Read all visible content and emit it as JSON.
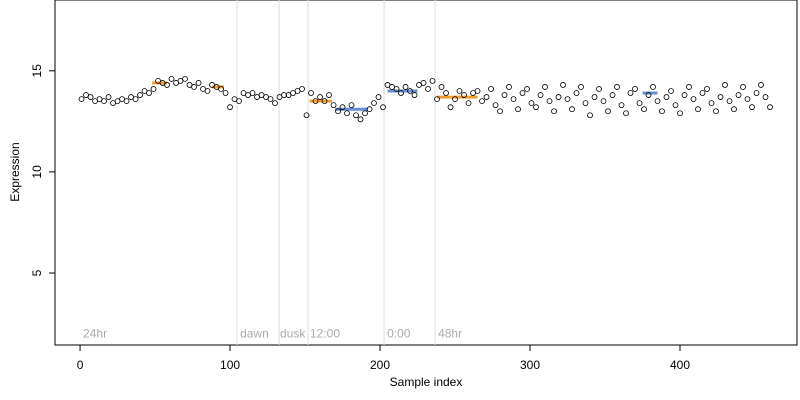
{
  "chart_data": {
    "type": "scatter",
    "x_label": "Sample index",
    "y_label": "Expression",
    "xlim": [
      -16.7,
      478
    ],
    "ylim": [
      1.44,
      18.5
    ],
    "xticks": [
      0,
      100,
      200,
      300,
      400
    ],
    "yticks": [
      5,
      10,
      15
    ],
    "x": [
      1,
      4,
      7,
      10,
      13,
      16,
      19,
      22,
      25,
      28,
      31,
      34,
      37,
      40,
      43,
      46,
      49,
      52,
      55,
      58,
      61,
      64,
      67,
      70,
      73,
      76,
      79,
      82,
      85,
      88,
      91,
      94,
      97,
      100,
      103,
      106,
      109,
      112,
      115,
      118,
      121,
      124,
      127,
      130,
      133,
      136,
      139,
      142,
      145,
      148,
      151,
      154,
      157,
      160,
      163,
      166,
      169,
      172,
      175,
      178,
      181,
      184,
      187,
      190,
      193,
      196,
      199,
      202,
      205,
      208,
      211,
      214,
      217,
      220,
      223,
      226,
      229,
      232,
      235,
      238,
      241,
      244,
      247,
      250,
      253,
      256,
      259,
      262,
      265,
      268,
      271,
      274,
      277,
      280,
      283,
      286,
      289,
      292,
      295,
      298,
      301,
      304,
      307,
      310,
      313,
      316,
      319,
      322,
      325,
      328,
      331,
      334,
      337,
      340,
      343,
      346,
      349,
      352,
      355,
      358,
      361,
      364,
      367,
      370,
      373,
      376,
      379,
      382,
      385,
      388,
      391,
      394,
      397,
      400,
      403,
      406,
      409,
      412,
      415,
      418,
      421,
      424,
      427,
      430,
      433,
      436,
      439,
      442,
      445,
      448,
      451,
      454,
      457,
      460
    ],
    "values": [
      13.6,
      13.8,
      13.7,
      13.5,
      13.6,
      13.5,
      13.7,
      13.4,
      13.5,
      13.6,
      13.5,
      13.7,
      13.6,
      13.8,
      14.0,
      13.9,
      14.1,
      14.5,
      14.4,
      14.3,
      14.6,
      14.4,
      14.5,
      14.6,
      14.3,
      14.2,
      14.4,
      14.1,
      14.0,
      14.3,
      14.2,
      14.1,
      13.9,
      13.2,
      13.6,
      13.5,
      13.9,
      13.8,
      13.9,
      13.7,
      13.8,
      13.7,
      13.6,
      13.4,
      13.7,
      13.8,
      13.8,
      13.9,
      14.0,
      14.1,
      12.8,
      13.9,
      13.5,
      13.7,
      13.5,
      13.8,
      13.3,
      13.0,
      13.2,
      12.9,
      13.3,
      12.8,
      12.6,
      12.9,
      13.1,
      13.4,
      13.7,
      13.2,
      14.3,
      14.2,
      14.1,
      13.9,
      14.2,
      14.0,
      13.8,
      14.3,
      14.4,
      14.1,
      14.5,
      13.6,
      14.2,
      13.9,
      13.2,
      13.6,
      14.0,
      13.8,
      13.4,
      13.9,
      14.0,
      13.5,
      13.7,
      14.1,
      13.3,
      13.0,
      13.8,
      14.2,
      13.6,
      13.1,
      13.9,
      14.1,
      13.4,
      13.2,
      13.8,
      14.2,
      13.5,
      13.0,
      13.7,
      14.3,
      13.6,
      13.1,
      13.9,
      14.2,
      13.4,
      12.8,
      13.7,
      14.1,
      13.5,
      13.0,
      13.8,
      14.2,
      13.3,
      12.9,
      13.9,
      14.1,
      13.4,
      13.1,
      13.8,
      14.2,
      13.5,
      13.0,
      13.7,
      14.0,
      13.3,
      12.9,
      13.8,
      14.2,
      13.6,
      13.1,
      13.9,
      14.1,
      13.4,
      13.0,
      13.7,
      14.3,
      13.5,
      13.1,
      13.8,
      14.2,
      13.6,
      13.2,
      13.9,
      14.3,
      13.7,
      13.2
    ],
    "segments": [
      {
        "x0": 48,
        "x1": 58,
        "y": 14.4,
        "color": "#f0a030"
      },
      {
        "x0": 88,
        "x1": 96,
        "y": 14.2,
        "color": "#f0a030"
      },
      {
        "x0": 153,
        "x1": 168,
        "y": 13.5,
        "color": "#f0a030"
      },
      {
        "x0": 170,
        "x1": 192,
        "y": 13.1,
        "color": "#6a8fd8"
      },
      {
        "x0": 205,
        "x1": 225,
        "y": 14.0,
        "color": "#6a8fd8"
      },
      {
        "x0": 238,
        "x1": 265,
        "y": 13.7,
        "color": "#f0a030"
      },
      {
        "x0": 375,
        "x1": 385,
        "y": 13.9,
        "color": "#6a8fd8"
      }
    ],
    "vlines": [
      104.7,
      132.7,
      152,
      202.7,
      236.7
    ],
    "annotations": [
      {
        "x": 2,
        "y": 2,
        "text": "24hr"
      },
      {
        "x": 106.7,
        "y": 2,
        "text": "dawn"
      },
      {
        "x": 133.3,
        "y": 2,
        "text": "dusk"
      },
      {
        "x": 153.3,
        "y": 2,
        "text": "12:00"
      },
      {
        "x": 204.7,
        "y": 2,
        "text": "0:00"
      },
      {
        "x": 238.7,
        "y": 2,
        "text": "48hr"
      }
    ]
  }
}
